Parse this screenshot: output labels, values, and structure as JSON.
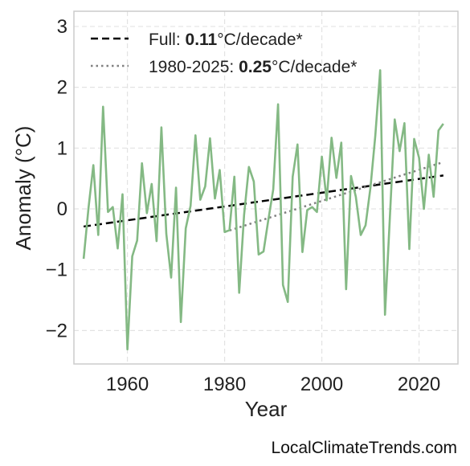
{
  "chart_data": {
    "type": "line",
    "xlabel": "Year",
    "ylabel": "Anomaly (°C)",
    "xlim": [
      1949,
      2028
    ],
    "ylim": [
      -2.55,
      3.25
    ],
    "xticks": [
      1960,
      1980,
      2000,
      2020
    ],
    "yticks": [
      3,
      2,
      1,
      0,
      -1,
      -2
    ],
    "ytick_labels": [
      "3",
      "2",
      "1",
      "0",
      "−1",
      "−2"
    ],
    "grid": true,
    "legend_position": "top-left",
    "colors": {
      "series": "#84b984",
      "full_trend": "#000000",
      "recent_trend": "#808080"
    },
    "series": [
      {
        "x": [
          1951,
          1952,
          1953,
          1954,
          1955,
          1956,
          1957,
          1958,
          1959,
          1960,
          1961,
          1962,
          1963,
          1964,
          1965,
          1966,
          1967,
          1968,
          1969,
          1970,
          1971,
          1972,
          1973,
          1974,
          1975,
          1976,
          1977,
          1978,
          1979,
          1980,
          1981,
          1982,
          1983,
          1984,
          1985,
          1986,
          1987,
          1988,
          1989,
          1990,
          1991,
          1992,
          1993,
          1994,
          1995,
          1996,
          1997,
          1998,
          1999,
          2000,
          2001,
          2002,
          2003,
          2004,
          2005,
          2006,
          2007,
          2008,
          2009,
          2010,
          2011,
          2012,
          2013,
          2014,
          2015,
          2016,
          2017,
          2018,
          2019,
          2020,
          2021,
          2022,
          2023,
          2024,
          2025
        ],
        "values": [
          -0.82,
          0.02,
          0.72,
          -0.43,
          1.68,
          -0.05,
          0.03,
          -0.65,
          0.24,
          -2.31,
          -0.78,
          -0.52,
          0.75,
          -0.07,
          0.41,
          -0.53,
          1.34,
          -0.41,
          -1.13,
          0.35,
          -1.86,
          -0.32,
          0.05,
          1.21,
          0.15,
          0.37,
          1.16,
          0.17,
          0.64,
          -0.38,
          -0.35,
          0.53,
          -1.38,
          -0.1,
          0.69,
          0.45,
          -0.75,
          -0.7,
          -0.18,
          0.32,
          1.72,
          -1.25,
          -1.53,
          0.53,
          1.06,
          -0.71,
          -0.02,
          0.03,
          -0.05,
          0.86,
          0.14,
          1.17,
          0.51,
          1.09,
          -1.32,
          0.54,
          0.2,
          -0.43,
          -0.27,
          0.35,
          1.2,
          2.28,
          -1.74,
          -0.13,
          1.47,
          0.95,
          1.41,
          -0.66,
          1.15,
          0.84,
          0.0,
          0.89,
          0.2,
          1.29,
          1.4
        ]
      }
    ],
    "trend_lines": [
      {
        "name": "Full",
        "x": [
          1951,
          2025
        ],
        "y": [
          -0.29,
          0.55
        ]
      },
      {
        "name": "1980-2025",
        "x": [
          1980,
          2025
        ],
        "y": [
          -0.38,
          0.77
        ]
      }
    ],
    "legend": [
      {
        "prefix": "Full: ",
        "bold": "0.11",
        "suffix": "°C/decade*"
      },
      {
        "prefix": "1980-2025: ",
        "bold": "0.25",
        "suffix": "°C/decade*"
      }
    ]
  },
  "credit": "LocalClimateTrends.com"
}
